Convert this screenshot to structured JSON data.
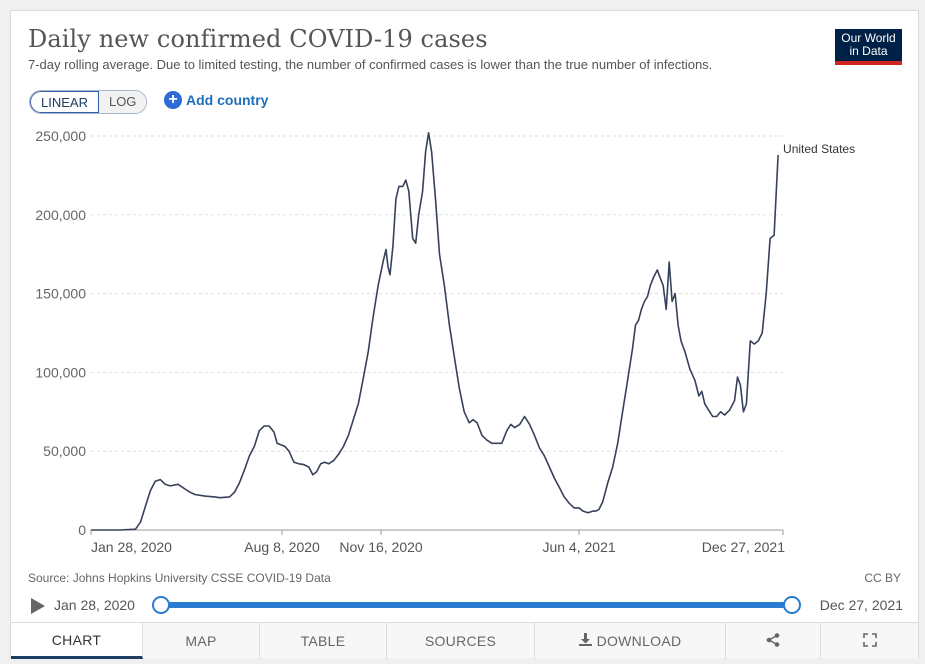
{
  "header": {
    "title": "Daily new confirmed COVID-19 cases",
    "subtitle": "7-day rolling average. Due to limited testing, the number of confirmed cases is lower than the true number of infections."
  },
  "logo": {
    "line1": "Our World",
    "line2": "in Data"
  },
  "controls": {
    "linear_label": "LINEAR",
    "log_label": "LOG",
    "add_country_label": "Add country"
  },
  "chart_data": {
    "type": "line",
    "title": "Daily new confirmed COVID-19 cases",
    "xlabel": "",
    "ylabel": "",
    "ylim": [
      0,
      250000
    ],
    "yticks": [
      0,
      50000,
      100000,
      150000,
      200000,
      250000
    ],
    "ytick_labels": [
      "0",
      "50,000",
      "100,000",
      "150,000",
      "200,000",
      "250,000"
    ],
    "xtick_labels": [
      {
        "day": 0,
        "label": "Jan 28, 2020"
      },
      {
        "day": 193,
        "label": "Aug 8, 2020"
      },
      {
        "day": 293,
        "label": "Nov 16, 2020"
      },
      {
        "day": 493,
        "label": "Jun 4, 2021"
      },
      {
        "day": 699,
        "label": "Dec 27, 2021"
      }
    ],
    "x_unit": "days since Jan 28, 2020",
    "series": [
      {
        "name": "United States",
        "color": "#36415a",
        "points": [
          [
            0,
            0
          ],
          [
            30,
            0
          ],
          [
            45,
            500
          ],
          [
            50,
            5000
          ],
          [
            55,
            15000
          ],
          [
            60,
            25000
          ],
          [
            65,
            31000
          ],
          [
            70,
            32000
          ],
          [
            75,
            29000
          ],
          [
            80,
            28000
          ],
          [
            88,
            29000
          ],
          [
            95,
            26000
          ],
          [
            100,
            24000
          ],
          [
            105,
            22500
          ],
          [
            115,
            21500
          ],
          [
            125,
            21000
          ],
          [
            130,
            20500
          ],
          [
            140,
            21000
          ],
          [
            145,
            24000
          ],
          [
            150,
            30000
          ],
          [
            155,
            38000
          ],
          [
            160,
            47000
          ],
          [
            165,
            53000
          ],
          [
            170,
            63000
          ],
          [
            175,
            66000
          ],
          [
            180,
            66000
          ],
          [
            185,
            62000
          ],
          [
            188,
            55000
          ],
          [
            192,
            54000
          ],
          [
            196,
            53000
          ],
          [
            200,
            50000
          ],
          [
            205,
            43000
          ],
          [
            210,
            42000
          ],
          [
            215,
            41500
          ],
          [
            220,
            40000
          ],
          [
            224,
            35000
          ],
          [
            228,
            37000
          ],
          [
            232,
            42000
          ],
          [
            236,
            43000
          ],
          [
            240,
            42000
          ],
          [
            245,
            44000
          ],
          [
            250,
            48000
          ],
          [
            255,
            53000
          ],
          [
            260,
            60000
          ],
          [
            265,
            70000
          ],
          [
            270,
            80000
          ],
          [
            275,
            96000
          ],
          [
            280,
            113000
          ],
          [
            285,
            135000
          ],
          [
            290,
            155000
          ],
          [
            295,
            170000
          ],
          [
            298,
            178000
          ],
          [
            300,
            167000
          ],
          [
            302,
            162000
          ],
          [
            305,
            180000
          ],
          [
            308,
            210000
          ],
          [
            311,
            218000
          ],
          [
            315,
            218000
          ],
          [
            318,
            222000
          ],
          [
            321,
            215000
          ],
          [
            325,
            185000
          ],
          [
            328,
            182000
          ],
          [
            331,
            200000
          ],
          [
            335,
            215000
          ],
          [
            338,
            240000
          ],
          [
            341,
            252000
          ],
          [
            344,
            240000
          ],
          [
            348,
            210000
          ],
          [
            352,
            175000
          ],
          [
            357,
            155000
          ],
          [
            362,
            130000
          ],
          [
            367,
            110000
          ],
          [
            372,
            90000
          ],
          [
            377,
            75000
          ],
          [
            382,
            68000
          ],
          [
            386,
            70000
          ],
          [
            390,
            68000
          ],
          [
            395,
            60000
          ],
          [
            400,
            57000
          ],
          [
            405,
            55000
          ],
          [
            410,
            55000
          ],
          [
            415,
            55000
          ],
          [
            420,
            63000
          ],
          [
            424,
            67000
          ],
          [
            428,
            65000
          ],
          [
            433,
            67000
          ],
          [
            438,
            72000
          ],
          [
            443,
            67000
          ],
          [
            448,
            60000
          ],
          [
            453,
            52000
          ],
          [
            458,
            47000
          ],
          [
            463,
            40000
          ],
          [
            468,
            33000
          ],
          [
            473,
            27000
          ],
          [
            478,
            21000
          ],
          [
            483,
            17000
          ],
          [
            488,
            14000
          ],
          [
            493,
            14000
          ],
          [
            497,
            12000
          ],
          [
            502,
            11000
          ],
          [
            507,
            12000
          ],
          [
            510,
            12000
          ],
          [
            513,
            13000
          ],
          [
            517,
            18000
          ],
          [
            522,
            30000
          ],
          [
            527,
            40000
          ],
          [
            532,
            55000
          ],
          [
            537,
            75000
          ],
          [
            542,
            95000
          ],
          [
            547,
            115000
          ],
          [
            550,
            130000
          ],
          [
            553,
            133000
          ],
          [
            556,
            140000
          ],
          [
            559,
            145000
          ],
          [
            562,
            148000
          ],
          [
            565,
            155000
          ],
          [
            568,
            160000
          ],
          [
            572,
            165000
          ],
          [
            575,
            160000
          ],
          [
            578,
            155000
          ],
          [
            581,
            140000
          ],
          [
            584,
            170000
          ],
          [
            587,
            145000
          ],
          [
            590,
            150000
          ],
          [
            593,
            130000
          ],
          [
            596,
            120000
          ],
          [
            600,
            113000
          ],
          [
            605,
            102000
          ],
          [
            610,
            95000
          ],
          [
            614,
            85000
          ],
          [
            617,
            88000
          ],
          [
            620,
            80000
          ],
          [
            625,
            75000
          ],
          [
            628,
            72000
          ],
          [
            632,
            72000
          ],
          [
            636,
            75000
          ],
          [
            640,
            73000
          ],
          [
            645,
            76000
          ],
          [
            650,
            82000
          ],
          [
            653,
            97000
          ],
          [
            656,
            92000
          ],
          [
            659,
            75000
          ],
          [
            662,
            80000
          ],
          [
            666,
            120000
          ],
          [
            670,
            118000
          ],
          [
            674,
            120000
          ],
          [
            678,
            125000
          ],
          [
            682,
            150000
          ],
          [
            686,
            185000
          ],
          [
            690,
            187000
          ],
          [
            694,
            238000
          ]
        ]
      }
    ]
  },
  "footer": {
    "source": "Source: Johns Hopkins University CSSE COVID-19 Data",
    "license": "CC BY",
    "timeline_start": "Jan 28, 2020",
    "timeline_end": "Dec 27, 2021"
  },
  "tabs": {
    "chart": "CHART",
    "map": "MAP",
    "table": "TABLE",
    "sources": "SOURCES",
    "download": "DOWNLOAD"
  },
  "icons": {
    "add": "plus-circle-icon",
    "play": "play-icon",
    "download": "download-icon",
    "share": "share-icon",
    "fullscreen": "fullscreen-icon"
  }
}
